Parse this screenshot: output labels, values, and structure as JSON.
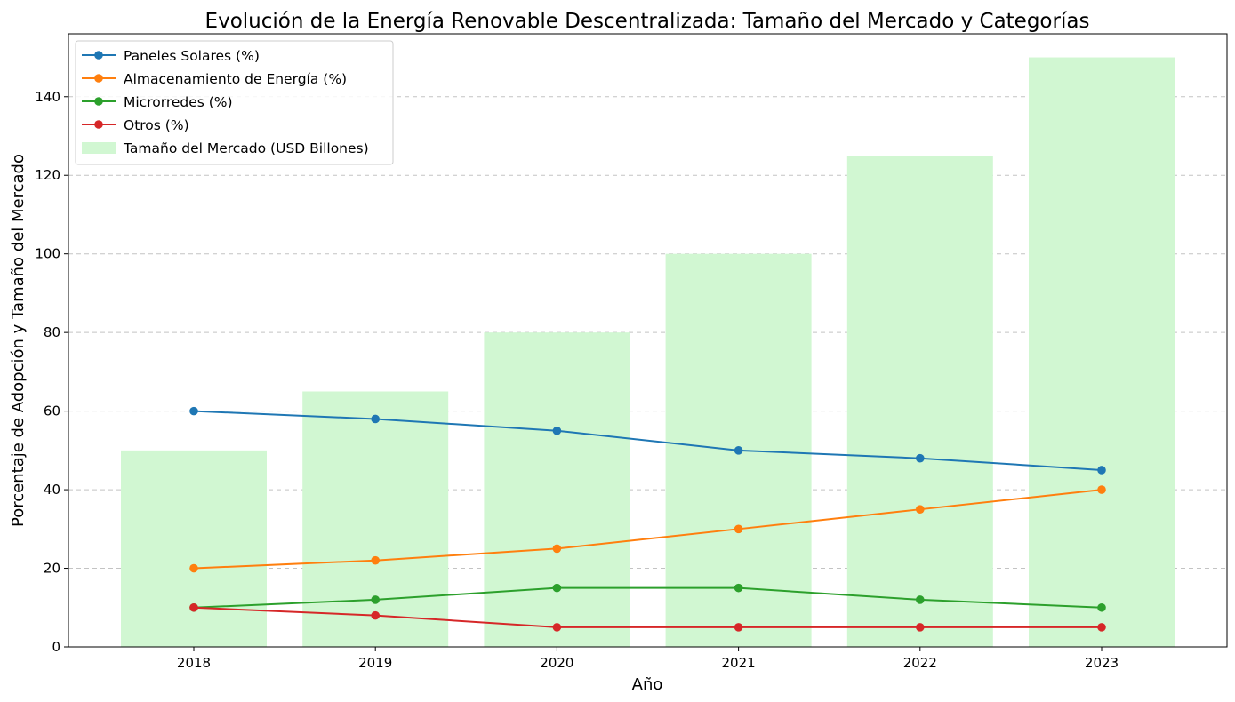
{
  "chart_data": {
    "type": "bar",
    "title": "Evolución de la Energía Renovable Descentralizada: Tamaño del Mercado y Categorías",
    "xlabel": "Año",
    "ylabel": "Porcentaje de Adopción y Tamaño del Mercado",
    "categories": [
      "2018",
      "2019",
      "2020",
      "2021",
      "2022",
      "2023"
    ],
    "ylim": [
      0,
      156
    ],
    "yticks": [
      0,
      20,
      40,
      60,
      80,
      100,
      120,
      140
    ],
    "grid": "y-dashed",
    "legend_position": "top-left",
    "bars": {
      "name": "Tamaño del Mercado (USD Billones)",
      "values": [
        50,
        65,
        80,
        100,
        125,
        150
      ],
      "color": "#d1f7d2"
    },
    "series": [
      {
        "name": "Paneles Solares (%)",
        "values": [
          60,
          58,
          55,
          50,
          48,
          45
        ],
        "color": "#1f77b4"
      },
      {
        "name": "Almacenamiento de Energía (%)",
        "values": [
          20,
          22,
          25,
          30,
          35,
          40
        ],
        "color": "#ff7f0e"
      },
      {
        "name": "Microrredes (%)",
        "values": [
          10,
          12,
          15,
          15,
          12,
          10
        ],
        "color": "#2ca02c"
      },
      {
        "name": "Otros (%)",
        "values": [
          10,
          8,
          5,
          5,
          5,
          5
        ],
        "color": "#d62728"
      }
    ]
  }
}
